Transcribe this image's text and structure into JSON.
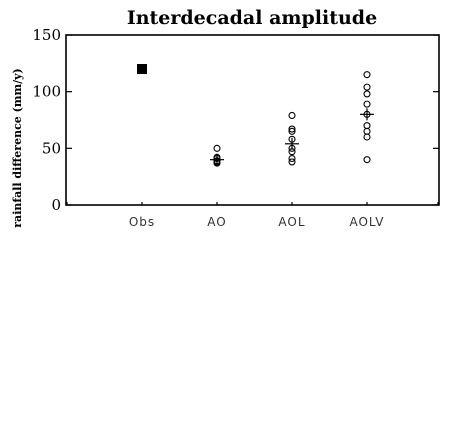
{
  "chart_data": {
    "type": "scatter",
    "title": "Interdecadal amplitude",
    "ylabel": "rainfall difference (mm/y)",
    "xlabel": "",
    "ylim": [
      0,
      150
    ],
    "yticks": [
      0,
      50,
      100,
      150
    ],
    "categories": [
      "Obs",
      "AO",
      "AOL",
      "AOLV"
    ],
    "grid": false,
    "legend": "none",
    "observed": {
      "category": "Obs",
      "value": 120,
      "marker": "filled-square"
    },
    "ensembles": [
      {
        "category": "AO",
        "values": [
          50,
          42,
          41,
          39,
          38,
          37
        ],
        "mean": 40
      },
      {
        "category": "AOL",
        "values": [
          79,
          67,
          65,
          58,
          50,
          47,
          41,
          38
        ],
        "mean": 54
      },
      {
        "category": "AOLV",
        "values": [
          115,
          104,
          98,
          89,
          80,
          70,
          65,
          60,
          40
        ],
        "mean": 80
      }
    ]
  }
}
